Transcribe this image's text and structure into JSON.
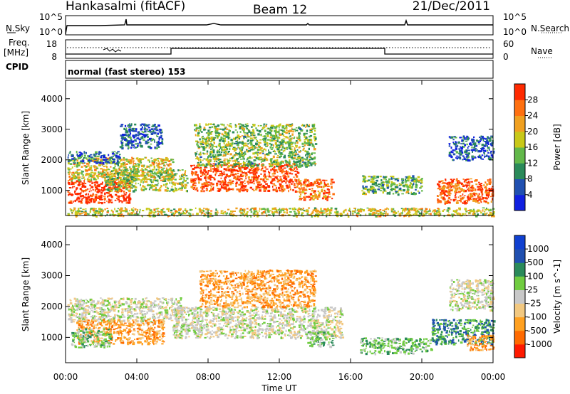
{
  "header": {
    "station": "Hankasalmi (fitACF)",
    "beam": "Beam 12",
    "date": "21/Dec/2011"
  },
  "top_panels": {
    "nsky_label": "N.Sky",
    "nsearch_label": "N.Search",
    "count_tick_top": "10^5",
    "count_tick_bottom": "10^0",
    "freq_label": "Freq.",
    "freq_unit": "[MHz]",
    "freq_ticks": [
      "18",
      "8"
    ],
    "nave_label": "Nave",
    "nave_ticks": [
      "60",
      "0"
    ],
    "cpid_label": "CPID",
    "cpid_text": "normal (fast stereo) 153"
  },
  "colors": {
    "power_scale": [
      "#1020e0",
      "#2050b0",
      "#2a8a5a",
      "#62b84a",
      "#c8c818",
      "#f0a020",
      "#ff7010",
      "#ff2a00"
    ],
    "velocity_scale": [
      "#ff1a00",
      "#ff6a00",
      "#ffa020",
      "#f2c880",
      "#c8c8c8",
      "#70cc40",
      "#2a8a5a",
      "#2050b0",
      "#1040d0"
    ]
  },
  "chart_data": [
    {
      "type": "heatmap",
      "title": "Power",
      "xlabel": "Time UT",
      "ylabel": "Slant Range [km]",
      "x_ticks": [
        "00:00",
        "04:00",
        "08:00",
        "12:00",
        "16:00",
        "20:00",
        "00:00"
      ],
      "xlim_hours": [
        0,
        24
      ],
      "y_ticks": [
        1000,
        2000,
        3000,
        4000
      ],
      "ylim": [
        180,
        4600
      ],
      "colorbar": {
        "label": "Power [dB]",
        "ticks": [
          4,
          8,
          12,
          16,
          20,
          24,
          28
        ],
        "range": [
          0,
          32
        ]
      },
      "regions": [
        {
          "t0": 0.1,
          "t1": 3.6,
          "r0": 600,
          "r1": 1350,
          "level": 7.3
        },
        {
          "t0": 0.1,
          "t1": 6.0,
          "r0": 1350,
          "r1": 2100,
          "level": 4.2
        },
        {
          "t0": 0.1,
          "t1": 3.0,
          "r0": 1900,
          "r1": 2300,
          "level": 1.5
        },
        {
          "t0": 2.2,
          "t1": 6.8,
          "r0": 1000,
          "r1": 1700,
          "level": 3.5
        },
        {
          "t0": 3.0,
          "t1": 5.4,
          "r0": 2400,
          "r1": 3200,
          "level": 1.2
        },
        {
          "t0": 7.0,
          "t1": 13.0,
          "r0": 1000,
          "r1": 1900,
          "level": 6.8
        },
        {
          "t0": 7.2,
          "t1": 14.0,
          "r0": 1800,
          "r1": 3200,
          "level": 3.2
        },
        {
          "t0": 13.0,
          "t1": 15.0,
          "r0": 700,
          "r1": 1400,
          "level": 6.0
        },
        {
          "t0": 16.6,
          "t1": 20.0,
          "r0": 900,
          "r1": 1500,
          "level": 2.8
        },
        {
          "t0": 20.8,
          "t1": 24.0,
          "r0": 600,
          "r1": 1400,
          "level": 6.5
        },
        {
          "t0": 21.5,
          "t1": 24.0,
          "r0": 2000,
          "r1": 2800,
          "level": 1.0
        },
        {
          "t0": 0.1,
          "t1": 24.0,
          "r0": 180,
          "r1": 450,
          "level": 4.0
        }
      ]
    },
    {
      "type": "heatmap",
      "title": "Velocity",
      "xlabel": "Time UT",
      "ylabel": "Slant Range [km]",
      "x_ticks": [
        "00:00",
        "04:00",
        "08:00",
        "12:00",
        "16:00",
        "20:00",
        "00:00"
      ],
      "xlim_hours": [
        0,
        24
      ],
      "y_ticks": [
        1000,
        2000,
        3000,
        4000
      ],
      "ylim": [
        180,
        4600
      ],
      "colorbar": {
        "label": "Velocity [m s^-1]",
        "ticks": [
          "1000",
          "500",
          "100",
          "25",
          "-25",
          "-100",
          "-500",
          "-1000"
        ]
      },
      "regions": [
        {
          "t0": 0.1,
          "t1": 6.5,
          "r0": 1500,
          "r1": 2300,
          "level": 4
        },
        {
          "t0": 0.6,
          "t1": 5.5,
          "r0": 800,
          "r1": 1600,
          "level": 2
        },
        {
          "t0": 0.3,
          "t1": 2.5,
          "r0": 700,
          "r1": 1300,
          "level": 5
        },
        {
          "t0": 6.0,
          "t1": 15.5,
          "r0": 1000,
          "r1": 2000,
          "level": 4
        },
        {
          "t0": 7.5,
          "t1": 14.0,
          "r0": 2000,
          "r1": 3200,
          "level": 2
        },
        {
          "t0": 13.5,
          "t1": 15.0,
          "r0": 700,
          "r1": 1200,
          "level": 5
        },
        {
          "t0": 16.5,
          "t1": 20.5,
          "r0": 500,
          "r1": 1000,
          "level": 5
        },
        {
          "t0": 20.5,
          "t1": 24.0,
          "r0": 800,
          "r1": 1600,
          "level": 6
        },
        {
          "t0": 21.5,
          "t1": 24.0,
          "r0": 1900,
          "r1": 2900,
          "level": 4
        },
        {
          "t0": 22.5,
          "t1": 24.0,
          "r0": 600,
          "r1": 1100,
          "level": 2
        }
      ]
    }
  ]
}
